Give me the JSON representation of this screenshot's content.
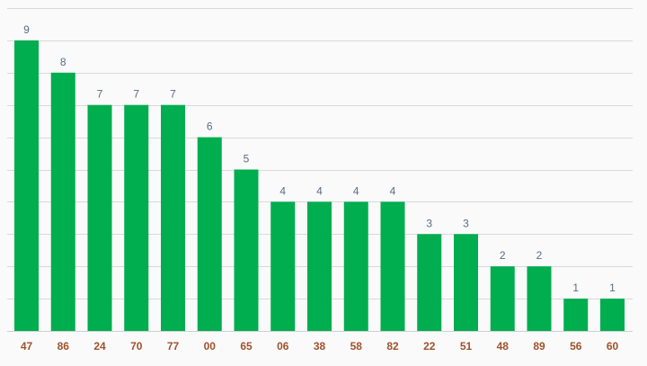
{
  "chart_data": {
    "type": "bar",
    "categories": [
      "47",
      "86",
      "24",
      "70",
      "77",
      "00",
      "65",
      "06",
      "38",
      "58",
      "82",
      "22",
      "51",
      "48",
      "89",
      "56",
      "60"
    ],
    "values": [
      9,
      8,
      7,
      7,
      7,
      6,
      5,
      4,
      4,
      4,
      4,
      3,
      3,
      2,
      2,
      1,
      1
    ],
    "title": "",
    "xlabel": "",
    "ylabel": "",
    "ylim": [
      0,
      10
    ],
    "grid": true,
    "legend": "none",
    "colors": {
      "bar": "#00ad4f",
      "data_label": "#5a6b87",
      "tick_label": "#a0522d",
      "grid": "#d9d9d9",
      "background": "#fafafa"
    }
  }
}
